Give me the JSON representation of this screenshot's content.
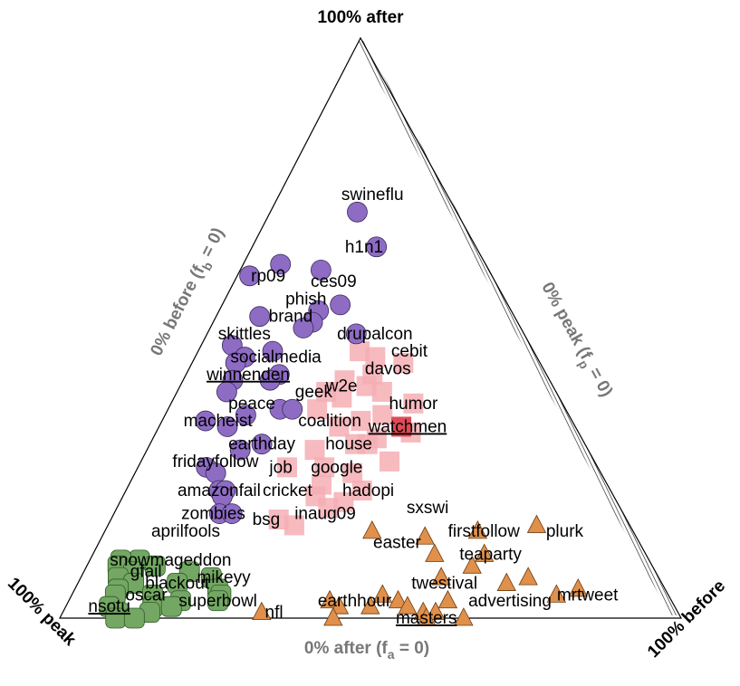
{
  "chart_data": {
    "type": "scatter",
    "corner_labels": {
      "top": "100% after",
      "left": "100% peak",
      "right": "100% before"
    },
    "edge_labels": {
      "left_main": "0% before (f",
      "left_sub": "b",
      "left_tail": " = 0)",
      "right_main": "0% peak (f",
      "right_sub": "p",
      "right_tail": " = 0)",
      "bottom_main": "0% after (f",
      "bottom_sub": "a",
      "bottom_tail": " = 0)"
    },
    "colors": {
      "purple": "#8e6cc4",
      "pink": "#f5aeb4",
      "red": "#e04a55",
      "orange": "#e0904b",
      "green": "#73a763",
      "hatch": "#333333"
    },
    "marker_shapes": {
      "purple": "circle",
      "pink": "square",
      "orange": "triangle",
      "green": "rounded-square"
    },
    "labels": [
      {
        "text": "swineflu",
        "a": 0.73,
        "p": 0.12,
        "b": 0.15
      },
      {
        "text": "h1n1",
        "a": 0.64,
        "p": 0.18,
        "b": 0.18
      },
      {
        "text": "rp09",
        "a": 0.59,
        "p": 0.36,
        "b": 0.05
      },
      {
        "text": "ces09",
        "a": 0.58,
        "p": 0.26,
        "b": 0.16
      },
      {
        "text": "phish",
        "a": 0.55,
        "p": 0.32,
        "b": 0.13
      },
      {
        "text": "brand",
        "a": 0.52,
        "p": 0.36,
        "b": 0.12
      },
      {
        "text": "skittles",
        "a": 0.49,
        "p": 0.45,
        "b": 0.06
      },
      {
        "text": "drupalcon",
        "a": 0.49,
        "p": 0.24,
        "b": 0.27
      },
      {
        "text": "socialmedia",
        "a": 0.45,
        "p": 0.42,
        "b": 0.13
      },
      {
        "text": "cebit",
        "a": 0.46,
        "p": 0.2,
        "b": 0.34
      },
      {
        "text": "davos",
        "a": 0.43,
        "p": 0.25,
        "b": 0.32
      },
      {
        "text": "winnenden",
        "a": 0.42,
        "p": 0.48,
        "b": 0.1,
        "underline": true
      },
      {
        "text": "w2e",
        "a": 0.4,
        "p": 0.34,
        "b": 0.26
      },
      {
        "text": "geek",
        "a": 0.39,
        "p": 0.39,
        "b": 0.22
      },
      {
        "text": "humor",
        "a": 0.37,
        "p": 0.24,
        "b": 0.39
      },
      {
        "text": "peace",
        "a": 0.37,
        "p": 0.5,
        "b": 0.13
      },
      {
        "text": "coalition",
        "a": 0.34,
        "p": 0.39,
        "b": 0.27
      },
      {
        "text": "watchmen",
        "a": 0.33,
        "p": 0.27,
        "b": 0.4,
        "underline": true
      },
      {
        "text": "macheist",
        "a": 0.34,
        "p": 0.57,
        "b": 0.09
      },
      {
        "text": "house",
        "a": 0.3,
        "p": 0.38,
        "b": 0.32
      },
      {
        "text": "earthday",
        "a": 0.3,
        "p": 0.52,
        "b": 0.18
      },
      {
        "text": "fridayfollow",
        "a": 0.27,
        "p": 0.61,
        "b": 0.12
      },
      {
        "text": "job",
        "a": 0.26,
        "p": 0.51,
        "b": 0.23
      },
      {
        "text": "google",
        "a": 0.26,
        "p": 0.42,
        "b": 0.32
      },
      {
        "text": "hadopi",
        "a": 0.22,
        "p": 0.39,
        "b": 0.39
      },
      {
        "text": "amazonfail",
        "a": 0.22,
        "p": 0.63,
        "b": 0.15
      },
      {
        "text": "cricket",
        "a": 0.22,
        "p": 0.52,
        "b": 0.26
      },
      {
        "text": "sxswi",
        "a": 0.19,
        "p": 0.31,
        "b": 0.5
      },
      {
        "text": "zombies",
        "a": 0.18,
        "p": 0.66,
        "b": 0.16
      },
      {
        "text": "inaug09",
        "a": 0.18,
        "p": 0.48,
        "b": 0.34
      },
      {
        "text": "bsg",
        "a": 0.17,
        "p": 0.58,
        "b": 0.25
      },
      {
        "text": "aprilfools",
        "a": 0.15,
        "p": 0.72,
        "b": 0.13
      },
      {
        "text": "firstfollow",
        "a": 0.15,
        "p": 0.24,
        "b": 0.61
      },
      {
        "text": "plurk",
        "a": 0.15,
        "p": 0.11,
        "b": 0.74
      },
      {
        "text": "easter",
        "a": 0.13,
        "p": 0.39,
        "b": 0.48
      },
      {
        "text": "teaparty",
        "a": 0.11,
        "p": 0.25,
        "b": 0.64
      },
      {
        "text": "snowmageddon",
        "a": 0.1,
        "p": 0.77,
        "b": 0.13
      },
      {
        "text": "gfail",
        "a": 0.08,
        "p": 0.82,
        "b": 0.1
      },
      {
        "text": "mikeyy",
        "a": 0.07,
        "p": 0.7,
        "b": 0.23
      },
      {
        "text": "twestival",
        "a": 0.06,
        "p": 0.35,
        "b": 0.59
      },
      {
        "text": "blackout",
        "a": 0.06,
        "p": 0.78,
        "b": 0.16
      },
      {
        "text": "oscar",
        "a": 0.04,
        "p": 0.84,
        "b": 0.12
      },
      {
        "text": "mrtweet",
        "a": 0.04,
        "p": 0.13,
        "b": 0.83
      },
      {
        "text": "superbowl",
        "a": 0.03,
        "p": 0.73,
        "b": 0.24
      },
      {
        "text": "earthhour",
        "a": 0.03,
        "p": 0.51,
        "b": 0.46
      },
      {
        "text": "advertising",
        "a": 0.03,
        "p": 0.26,
        "b": 0.71
      },
      {
        "text": "nsotu",
        "a": 0.02,
        "p": 0.91,
        "b": 0.07,
        "underline": true
      },
      {
        "text": "nfl",
        "a": 0.01,
        "p": 0.65,
        "b": 0.34
      },
      {
        "text": "masters",
        "a": 0.0,
        "p": 0.41,
        "b": 0.59,
        "underline": true
      }
    ],
    "points": {
      "purple": [
        {
          "a": 0.7,
          "p": 0.16,
          "b": 0.14
        },
        {
          "a": 0.64,
          "p": 0.16,
          "b": 0.2
        },
        {
          "a": 0.6,
          "p": 0.27,
          "b": 0.13
        },
        {
          "a": 0.61,
          "p": 0.33,
          "b": 0.06
        },
        {
          "a": 0.59,
          "p": 0.39,
          "b": 0.02
        },
        {
          "a": 0.54,
          "p": 0.27,
          "b": 0.19
        },
        {
          "a": 0.53,
          "p": 0.31,
          "b": 0.16
        },
        {
          "a": 0.52,
          "p": 0.41,
          "b": 0.07
        },
        {
          "a": 0.51,
          "p": 0.33,
          "b": 0.16
        },
        {
          "a": 0.5,
          "p": 0.35,
          "b": 0.15
        },
        {
          "a": 0.49,
          "p": 0.27,
          "b": 0.24
        },
        {
          "a": 0.47,
          "p": 0.48,
          "b": 0.05
        },
        {
          "a": 0.46,
          "p": 0.42,
          "b": 0.12
        },
        {
          "a": 0.45,
          "p": 0.47,
          "b": 0.08
        },
        {
          "a": 0.44,
          "p": 0.49,
          "b": 0.07
        },
        {
          "a": 0.42,
          "p": 0.43,
          "b": 0.15
        },
        {
          "a": 0.41,
          "p": 0.51,
          "b": 0.08
        },
        {
          "a": 0.41,
          "p": 0.45,
          "b": 0.14
        },
        {
          "a": 0.39,
          "p": 0.53,
          "b": 0.08
        },
        {
          "a": 0.36,
          "p": 0.46,
          "b": 0.18
        },
        {
          "a": 0.36,
          "p": 0.44,
          "b": 0.2
        },
        {
          "a": 0.35,
          "p": 0.52,
          "b": 0.13
        },
        {
          "a": 0.34,
          "p": 0.59,
          "b": 0.07
        },
        {
          "a": 0.33,
          "p": 0.56,
          "b": 0.11
        },
        {
          "a": 0.3,
          "p": 0.52,
          "b": 0.18
        },
        {
          "a": 0.29,
          "p": 0.56,
          "b": 0.15
        },
        {
          "a": 0.26,
          "p": 0.63,
          "b": 0.11
        },
        {
          "a": 0.25,
          "p": 0.62,
          "b": 0.13
        },
        {
          "a": 0.22,
          "p": 0.63,
          "b": 0.15
        },
        {
          "a": 0.22,
          "p": 0.62,
          "b": 0.16
        },
        {
          "a": 0.21,
          "p": 0.63,
          "b": 0.16
        },
        {
          "a": 0.18,
          "p": 0.65,
          "b": 0.17
        },
        {
          "a": 0.18,
          "p": 0.63,
          "b": 0.19
        }
      ],
      "pink": [
        {
          "a": 0.46,
          "p": 0.28,
          "b": 0.26
        },
        {
          "a": 0.45,
          "p": 0.26,
          "b": 0.29
        },
        {
          "a": 0.44,
          "p": 0.22,
          "b": 0.34
        },
        {
          "a": 0.42,
          "p": 0.28,
          "b": 0.3
        },
        {
          "a": 0.41,
          "p": 0.33,
          "b": 0.26
        },
        {
          "a": 0.4,
          "p": 0.3,
          "b": 0.3
        },
        {
          "a": 0.39,
          "p": 0.37,
          "b": 0.24
        },
        {
          "a": 0.39,
          "p": 0.28,
          "b": 0.33
        },
        {
          "a": 0.38,
          "p": 0.35,
          "b": 0.27
        },
        {
          "a": 0.37,
          "p": 0.24,
          "b": 0.39
        },
        {
          "a": 0.36,
          "p": 0.4,
          "b": 0.24
        },
        {
          "a": 0.35,
          "p": 0.3,
          "b": 0.35
        },
        {
          "a": 0.34,
          "p": 0.34,
          "b": 0.32
        },
        {
          "a": 0.33,
          "p": 0.38,
          "b": 0.29
        },
        {
          "a": 0.32,
          "p": 0.27,
          "b": 0.41
        },
        {
          "a": 0.31,
          "p": 0.33,
          "b": 0.36
        },
        {
          "a": 0.3,
          "p": 0.37,
          "b": 0.33
        },
        {
          "a": 0.3,
          "p": 0.35,
          "b": 0.35
        },
        {
          "a": 0.29,
          "p": 0.44,
          "b": 0.27
        },
        {
          "a": 0.27,
          "p": 0.33,
          "b": 0.4
        },
        {
          "a": 0.26,
          "p": 0.5,
          "b": 0.24
        },
        {
          "a": 0.26,
          "p": 0.44,
          "b": 0.3
        },
        {
          "a": 0.25,
          "p": 0.4,
          "b": 0.35
        },
        {
          "a": 0.23,
          "p": 0.46,
          "b": 0.31
        },
        {
          "a": 0.22,
          "p": 0.4,
          "b": 0.38
        },
        {
          "a": 0.21,
          "p": 0.48,
          "b": 0.31
        },
        {
          "a": 0.2,
          "p": 0.44,
          "b": 0.36
        },
        {
          "a": 0.19,
          "p": 0.47,
          "b": 0.34
        },
        {
          "a": 0.17,
          "p": 0.56,
          "b": 0.27
        },
        {
          "a": 0.16,
          "p": 0.54,
          "b": 0.3
        }
      ],
      "red": [
        {
          "a": 0.33,
          "p": 0.28,
          "b": 0.39
        }
      ],
      "orange": [
        {
          "a": 0.16,
          "p": 0.15,
          "b": 0.69
        },
        {
          "a": 0.15,
          "p": 0.25,
          "b": 0.6
        },
        {
          "a": 0.15,
          "p": 0.42,
          "b": 0.43
        },
        {
          "a": 0.14,
          "p": 0.34,
          "b": 0.52
        },
        {
          "a": 0.11,
          "p": 0.34,
          "b": 0.55
        },
        {
          "a": 0.11,
          "p": 0.26,
          "b": 0.63
        },
        {
          "a": 0.09,
          "p": 0.29,
          "b": 0.62
        },
        {
          "a": 0.07,
          "p": 0.21,
          "b": 0.72
        },
        {
          "a": 0.07,
          "p": 0.35,
          "b": 0.58
        },
        {
          "a": 0.06,
          "p": 0.25,
          "b": 0.69
        },
        {
          "a": 0.05,
          "p": 0.14,
          "b": 0.81
        },
        {
          "a": 0.04,
          "p": 0.18,
          "b": 0.78
        },
        {
          "a": 0.04,
          "p": 0.46,
          "b": 0.5
        },
        {
          "a": 0.03,
          "p": 0.55,
          "b": 0.42
        },
        {
          "a": 0.03,
          "p": 0.44,
          "b": 0.53
        },
        {
          "a": 0.03,
          "p": 0.36,
          "b": 0.61
        },
        {
          "a": 0.02,
          "p": 0.49,
          "b": 0.49
        },
        {
          "a": 0.02,
          "p": 0.43,
          "b": 0.55
        },
        {
          "a": 0.02,
          "p": 0.54,
          "b": 0.44
        },
        {
          "a": 0.01,
          "p": 0.67,
          "b": 0.32
        },
        {
          "a": 0.01,
          "p": 0.41,
          "b": 0.58
        },
        {
          "a": 0.01,
          "p": 0.39,
          "b": 0.6
        },
        {
          "a": 0.0,
          "p": 0.56,
          "b": 0.44
        },
        {
          "a": 0.0,
          "p": 0.35,
          "b": 0.65
        },
        {
          "a": 0.0,
          "p": 0.41,
          "b": 0.59
        }
      ],
      "green": [
        {
          "a": 0.1,
          "p": 0.82,
          "b": 0.08
        },
        {
          "a": 0.1,
          "p": 0.85,
          "b": 0.05
        },
        {
          "a": 0.09,
          "p": 0.8,
          "b": 0.11
        },
        {
          "a": 0.09,
          "p": 0.86,
          "b": 0.05
        },
        {
          "a": 0.08,
          "p": 0.84,
          "b": 0.08
        },
        {
          "a": 0.08,
          "p": 0.75,
          "b": 0.17
        },
        {
          "a": 0.07,
          "p": 0.87,
          "b": 0.06
        },
        {
          "a": 0.07,
          "p": 0.72,
          "b": 0.21
        },
        {
          "a": 0.06,
          "p": 0.85,
          "b": 0.09
        },
        {
          "a": 0.06,
          "p": 0.78,
          "b": 0.16
        },
        {
          "a": 0.05,
          "p": 0.72,
          "b": 0.23
        },
        {
          "a": 0.05,
          "p": 0.88,
          "b": 0.07
        },
        {
          "a": 0.04,
          "p": 0.83,
          "b": 0.13
        },
        {
          "a": 0.04,
          "p": 0.72,
          "b": 0.24
        },
        {
          "a": 0.04,
          "p": 0.89,
          "b": 0.07
        },
        {
          "a": 0.03,
          "p": 0.79,
          "b": 0.18
        },
        {
          "a": 0.03,
          "p": 0.73,
          "b": 0.24
        },
        {
          "a": 0.02,
          "p": 0.91,
          "b": 0.07
        },
        {
          "a": 0.02,
          "p": 0.84,
          "b": 0.14
        },
        {
          "a": 0.02,
          "p": 0.81,
          "b": 0.17
        },
        {
          "a": 0.01,
          "p": 0.9,
          "b": 0.09
        },
        {
          "a": 0.01,
          "p": 0.85,
          "b": 0.14
        },
        {
          "a": 0.0,
          "p": 0.91,
          "b": 0.09
        },
        {
          "a": 0.0,
          "p": 0.88,
          "b": 0.12
        }
      ]
    }
  }
}
